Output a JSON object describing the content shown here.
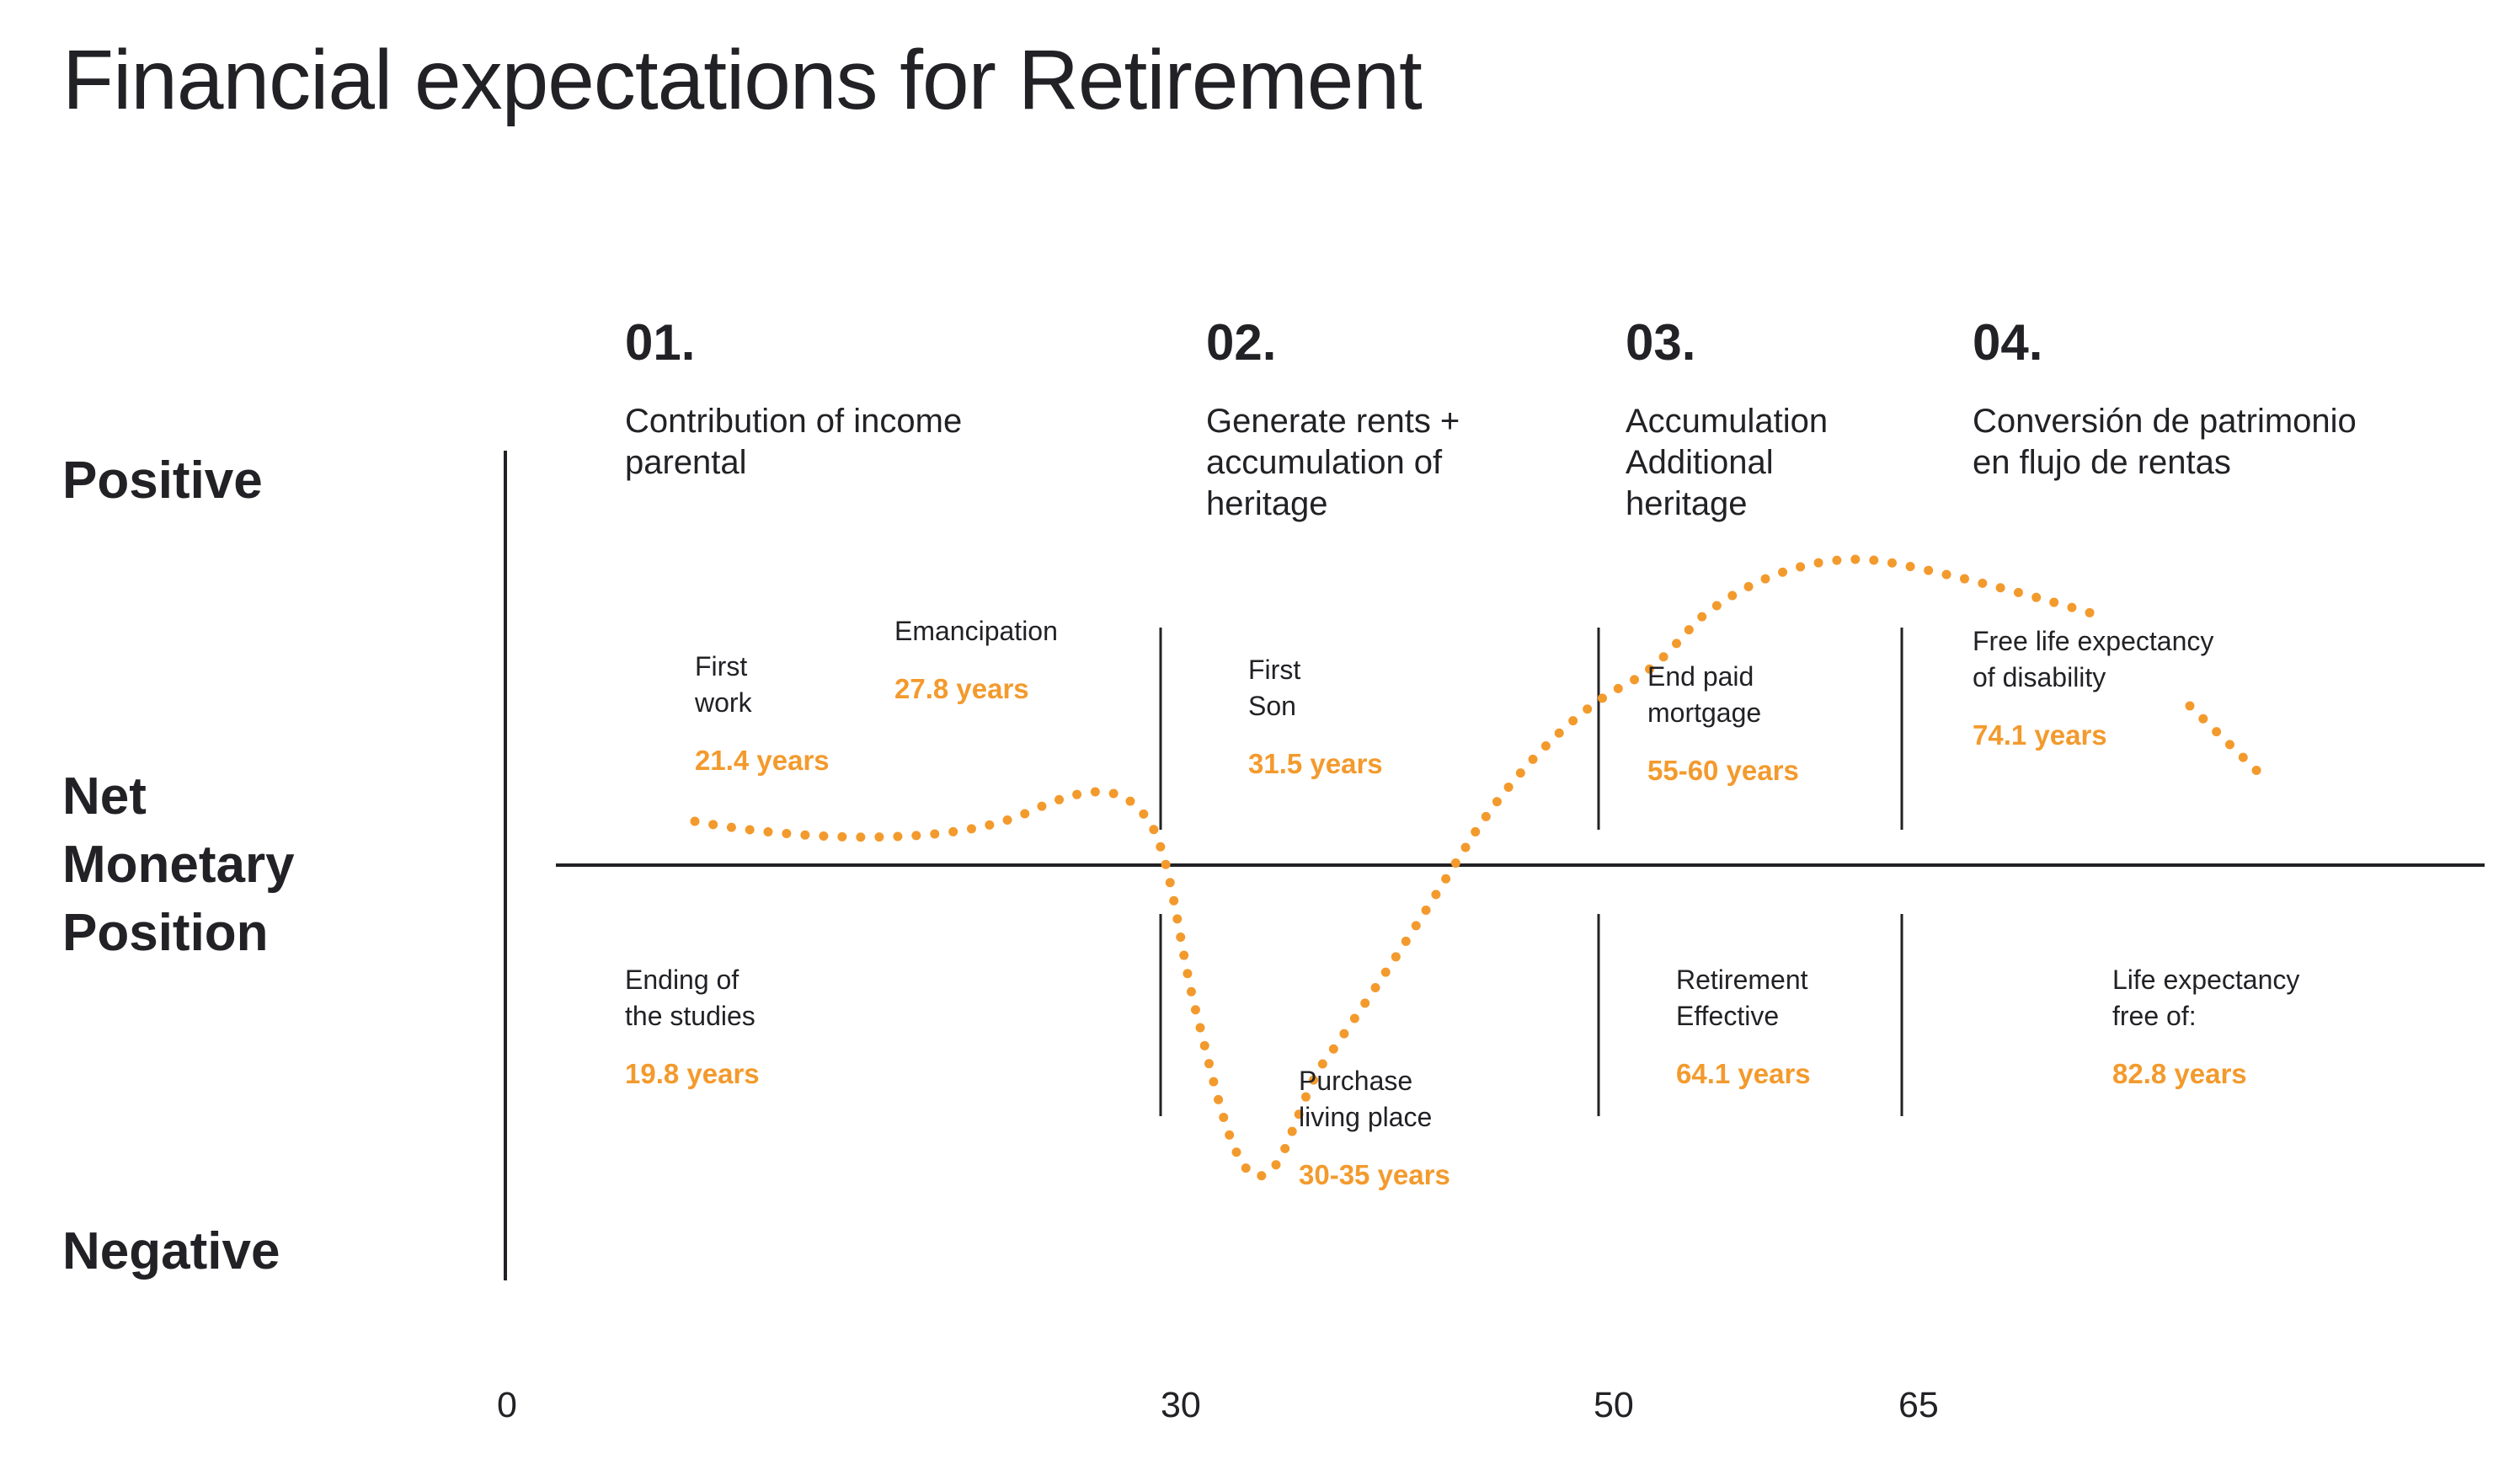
{
  "title": "Financial expectations for Retirement",
  "y_axis": {
    "top_label": "Positive",
    "middle_label": [
      "Net",
      "Monetary",
      "Position"
    ],
    "bottom_label": "Negative"
  },
  "x_ticks": [
    "0",
    "30",
    "50",
    "65"
  ],
  "phases": [
    {
      "number": "01.",
      "lines": [
        "Contribution of income",
        "parental"
      ]
    },
    {
      "number": "02.",
      "lines": [
        "Generate rents +",
        "accumulation of",
        "heritage"
      ]
    },
    {
      "number": "03.",
      "lines": [
        "Accumulation",
        "Additional",
        "heritage"
      ]
    },
    {
      "number": "04.",
      "lines": [
        "Conversión de patrimonio",
        "en flujo de rentas"
      ]
    }
  ],
  "events_above": [
    {
      "label": [
        "First",
        "work"
      ],
      "value": "21.4 years"
    },
    {
      "label": [
        "Emancipation"
      ],
      "value": "27.8 years"
    },
    {
      "label": [
        "First",
        "Son"
      ],
      "value": "31.5 years"
    },
    {
      "label": [
        "End paid",
        "mortgage"
      ],
      "value": "55-60 years"
    },
    {
      "label": [
        "Free life expectancy",
        "of disability"
      ],
      "value": "74.1 years"
    }
  ],
  "events_below": [
    {
      "label": [
        "Ending of",
        "the studies"
      ],
      "value": "19.8 years"
    },
    {
      "label": [
        "Purchase",
        "living place"
      ],
      "value": "30-35 years"
    },
    {
      "label": [
        "Retirement",
        "Effective"
      ],
      "value": "64.1 years"
    },
    {
      "label": [
        "Life expectancy",
        "free of:"
      ],
      "value": "82.8 years"
    }
  ],
  "colors": {
    "accent": "#f39a2d",
    "text": "#222226",
    "line": "#222226"
  },
  "curve_style": "dotted"
}
